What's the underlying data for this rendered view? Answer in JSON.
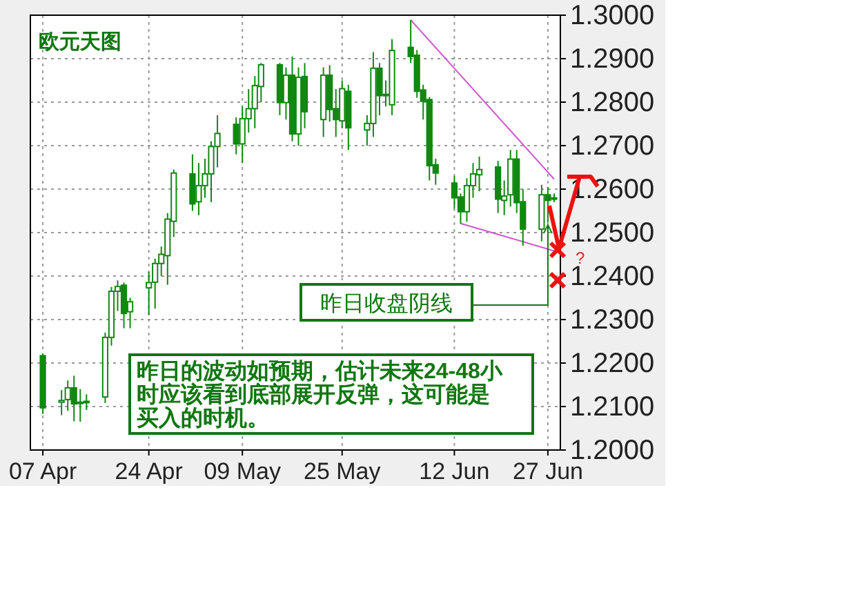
{
  "chart_data": {
    "type": "candlestick",
    "title": "欧元天图",
    "color": "#118811",
    "x": [
      "--04-07",
      "--04-10",
      "--04-11",
      "--04-12",
      "--04-13",
      "--04-14",
      "--04-17",
      "--04-18",
      "--04-19",
      "--04-20",
      "--04-21",
      "--04-24",
      "--04-25",
      "--04-26",
      "--04-27",
      "--04-28",
      "--05-01",
      "--05-02",
      "--05-03",
      "--05-04",
      "--05-05",
      "--05-08",
      "--05-09",
      "--05-10",
      "--05-11",
      "--05-12",
      "--05-15",
      "--05-16",
      "--05-17",
      "--05-18",
      "--05-19",
      "--05-22",
      "--05-23",
      "--05-24",
      "--05-25",
      "--05-26",
      "--05-29",
      "--05-30",
      "--05-31",
      "--06-01",
      "--06-02",
      "--06-05",
      "--06-06",
      "--06-07",
      "--06-08",
      "--06-09",
      "--06-12",
      "--06-13",
      "--06-14",
      "--06-15",
      "--06-16",
      "--06-19",
      "--06-20",
      "--06-21",
      "--06-22",
      "--06-23",
      "--06-26",
      "--06-27",
      "--06-28"
    ],
    "ohlc": [
      [
        1.2217,
        1.2222,
        1.2083,
        1.2097
      ],
      [
        1.211,
        1.2138,
        1.208,
        1.2114
      ],
      [
        1.2116,
        1.216,
        1.209,
        1.2143
      ],
      [
        1.2143,
        1.2171,
        1.2066,
        1.2106
      ],
      [
        1.2107,
        1.214,
        1.2065,
        1.211
      ],
      [
        1.211,
        1.2128,
        1.2092,
        1.2112
      ],
      [
        1.2122,
        1.227,
        1.2108,
        1.2259
      ],
      [
        1.2259,
        1.2375,
        1.224,
        1.2365
      ],
      [
        1.2365,
        1.239,
        1.232,
        1.2376
      ],
      [
        1.2379,
        1.2385,
        1.228,
        1.2314
      ],
      [
        1.2318,
        1.235,
        1.228,
        1.2341
      ],
      [
        1.2373,
        1.241,
        1.231,
        1.2385
      ],
      [
        1.2386,
        1.244,
        1.2325,
        1.2429
      ],
      [
        1.2429,
        1.2468,
        1.24,
        1.245
      ],
      [
        1.2447,
        1.2545,
        1.238,
        1.2531
      ],
      [
        1.2526,
        1.2645,
        1.249,
        1.2637
      ],
      [
        1.2635,
        1.268,
        1.255,
        1.2566
      ],
      [
        1.2571,
        1.266,
        1.254,
        1.2608
      ],
      [
        1.2608,
        1.267,
        1.258,
        1.2635
      ],
      [
        1.2635,
        1.271,
        1.257,
        1.2698
      ],
      [
        1.2698,
        1.277,
        1.265,
        1.2728
      ],
      [
        1.2749,
        1.2765,
        1.268,
        1.2704
      ],
      [
        1.2704,
        1.279,
        1.266,
        1.2762
      ],
      [
        1.2762,
        1.283,
        1.273,
        1.2785
      ],
      [
        1.2785,
        1.286,
        1.274,
        1.2838
      ],
      [
        1.2836,
        1.289,
        1.28,
        1.2886
      ],
      [
        1.2886,
        1.289,
        1.277,
        1.2799
      ],
      [
        1.2799,
        1.288,
        1.276,
        1.2862
      ],
      [
        1.2862,
        1.2905,
        1.271,
        1.2727
      ],
      [
        1.2727,
        1.288,
        1.27,
        1.2857
      ],
      [
        1.2859,
        1.289,
        1.274,
        1.2778
      ],
      [
        1.276,
        1.288,
        1.272,
        1.2862
      ],
      [
        1.2862,
        1.2885,
        1.2755,
        1.2783
      ],
      [
        1.2785,
        1.283,
        1.272,
        1.276
      ],
      [
        1.2757,
        1.285,
        1.274,
        1.2831
      ],
      [
        1.2825,
        1.284,
        1.269,
        1.2741
      ],
      [
        1.2736,
        1.277,
        1.27,
        1.2751
      ],
      [
        1.2751,
        1.2915,
        1.272,
        1.2878
      ],
      [
        1.2878,
        1.289,
        1.277,
        1.2815
      ],
      [
        1.2817,
        1.285,
        1.279,
        1.2818
      ],
      [
        1.2794,
        1.2945,
        1.277,
        1.2919
      ],
      [
        1.2926,
        1.2989,
        1.289,
        1.2905
      ],
      [
        1.2908,
        1.292,
        1.281,
        1.2825
      ],
      [
        1.2828,
        1.284,
        1.276,
        1.2802
      ],
      [
        1.2806,
        1.2812,
        1.262,
        1.2654
      ],
      [
        1.2656,
        1.267,
        1.261,
        1.2637
      ],
      [
        1.2614,
        1.263,
        1.2555,
        1.258
      ],
      [
        1.2582,
        1.259,
        1.252,
        1.2548
      ],
      [
        1.2548,
        1.2625,
        1.2525,
        1.2608
      ],
      [
        1.2608,
        1.266,
        1.258,
        1.2635
      ],
      [
        1.2633,
        1.2675,
        1.2595,
        1.2645
      ],
      [
        1.2651,
        1.2665,
        1.2545,
        1.2577
      ],
      [
        1.2574,
        1.262,
        1.254,
        1.2584
      ],
      [
        1.2587,
        1.269,
        1.256,
        1.2669
      ],
      [
        1.2669,
        1.269,
        1.2545,
        1.2569
      ],
      [
        1.2571,
        1.26,
        1.247,
        1.2508
      ],
      [
        1.2508,
        1.261,
        1.248,
        1.2587
      ],
      [
        1.2587,
        1.2605,
        1.2524,
        1.2574
      ],
      [
        1.2578,
        1.259,
        1.257,
        1.258
      ]
    ],
    "series": [
      {
        "type": "line",
        "color": "#cc55cc",
        "x": [
          "--06-05",
          "--06-28"
        ],
        "values": [
          1.2989,
          1.2623
        ]
      },
      {
        "type": "line",
        "color": "#cc55cc",
        "x": [
          "--06-13",
          "--06-28"
        ],
        "values": [
          1.2521,
          1.2458
        ]
      }
    ],
    "xlim": [
      "--04-05",
      "--06-29"
    ],
    "ylim": [
      1.2,
      1.3
    ],
    "yticks": [
      {
        "value": 1.2,
        "label": "1.2000"
      },
      {
        "value": 1.21,
        "label": "1.2100"
      },
      {
        "value": 1.22,
        "label": "1.2200"
      },
      {
        "value": 1.23,
        "label": "1.2300"
      },
      {
        "value": 1.24,
        "label": "1.2400"
      },
      {
        "value": 1.25,
        "label": "1.2500"
      },
      {
        "value": 1.26,
        "label": "1.2600"
      },
      {
        "value": 1.27,
        "label": "1.2700"
      },
      {
        "value": 1.28,
        "label": "1.2800"
      },
      {
        "value": 1.29,
        "label": "1.2900"
      },
      {
        "value": 1.3,
        "label": "1.3000"
      }
    ],
    "xticks": [
      {
        "value": "--04-07",
        "label": "07 Apr"
      },
      {
        "value": "--04-24",
        "label": "24 Apr"
      },
      {
        "value": "--05-09",
        "label": "09 May"
      },
      {
        "value": "--05-25",
        "label": "25 May"
      },
      {
        "value": "--06-12",
        "label": "12 Jun"
      },
      {
        "value": "--06-27",
        "label": "27 Jun"
      }
    ],
    "grid": true,
    "annotations": [
      {
        "text": "昨日收盘阴线",
        "x": "--06-27",
        "y": 1.2524
      },
      "昨日的波动如预期，估计未来24-48小时应该看到底部展开反弹，这可能是买入的时机。",
      "?"
    ]
  }
}
